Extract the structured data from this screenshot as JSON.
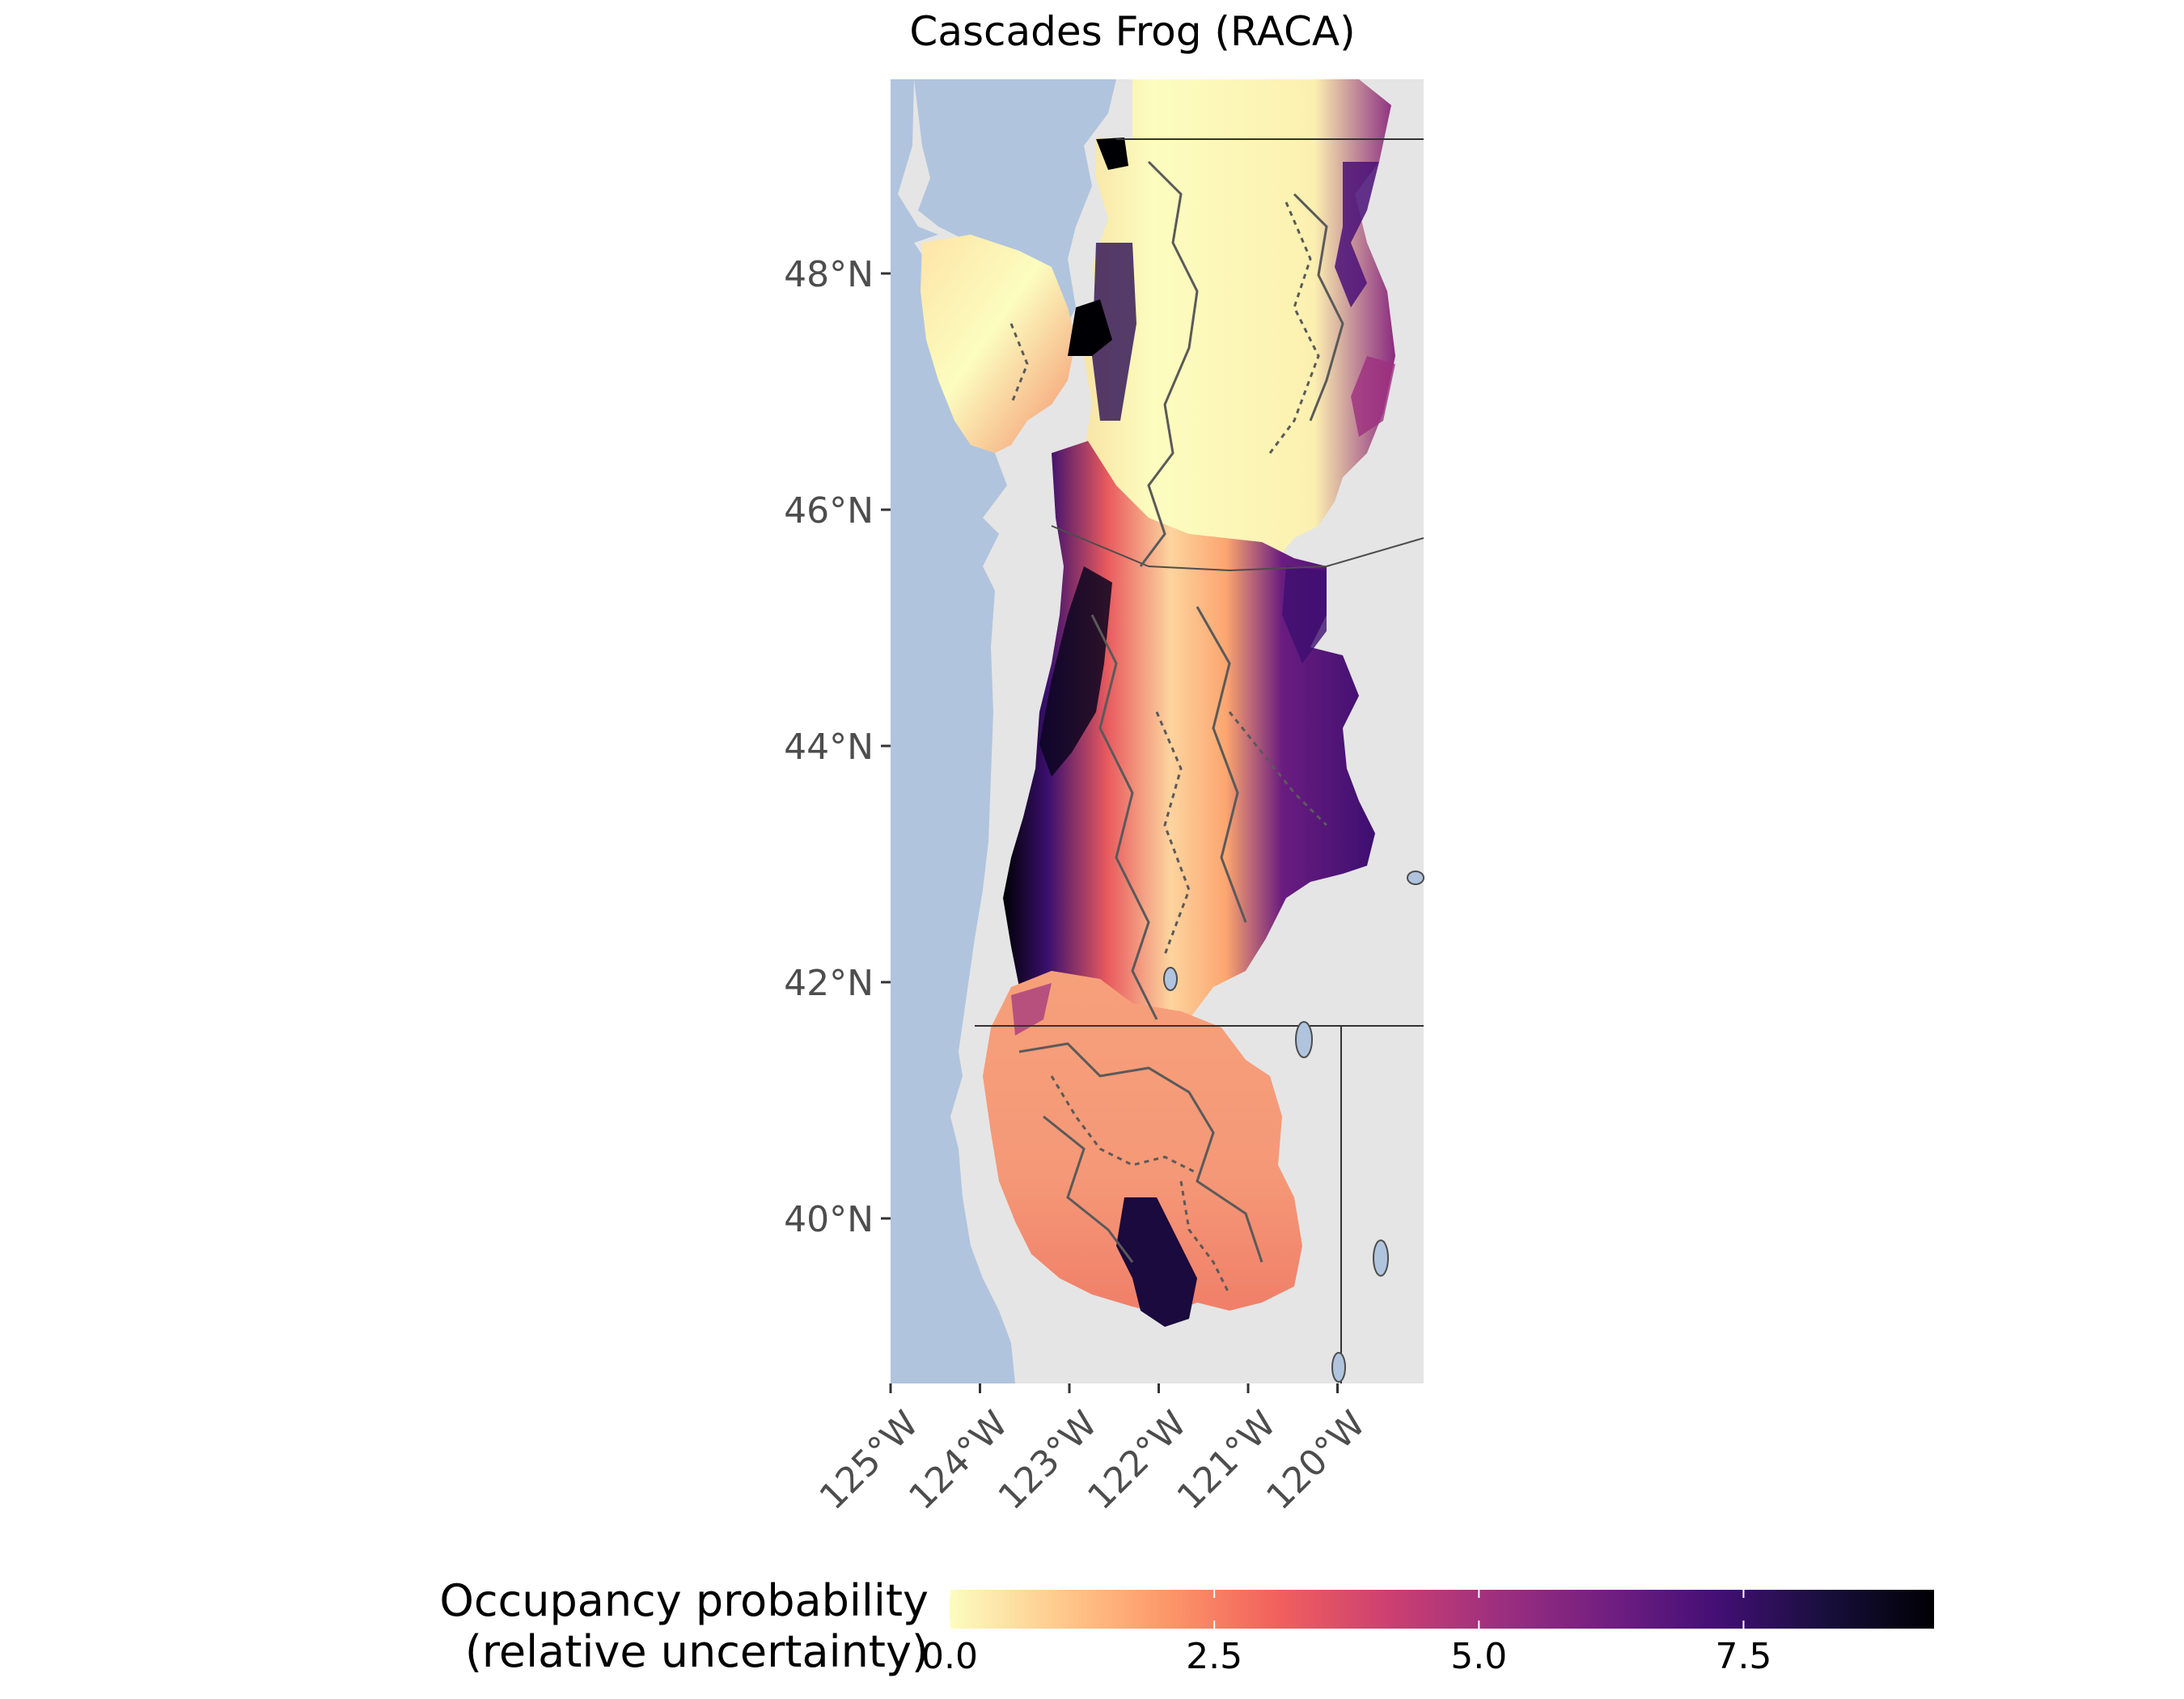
{
  "title": "Cascades Frog (RACA)",
  "map": {
    "lon_range": [
      -125,
      -119
    ],
    "lat_range": [
      39,
      49.5
    ],
    "lat_ticks": [
      {
        "value": 48,
        "label": "48°N"
      },
      {
        "value": 46,
        "label": "46°N"
      },
      {
        "value": 44,
        "label": "44°N"
      },
      {
        "value": 42,
        "label": "42°N"
      },
      {
        "value": 40,
        "label": "40°N"
      }
    ],
    "lon_ticks": [
      {
        "value": -125,
        "label": "125°W"
      },
      {
        "value": -124,
        "label": "124°W"
      },
      {
        "value": -123,
        "label": "123°W"
      },
      {
        "value": -122,
        "label": "122°W"
      },
      {
        "value": -121,
        "label": "121°W"
      },
      {
        "value": -120,
        "label": "120°W"
      }
    ],
    "colors": {
      "ocean": "#b0c4de",
      "land": "#e5e5e5",
      "border": "#4d4d4d"
    }
  },
  "legend": {
    "title_line1": "Occupancy probability",
    "title_line2": "(relative uncertainty)",
    "range": [
      0,
      9.3
    ],
    "ticks": [
      {
        "value": 0,
        "label": "0.0"
      },
      {
        "value": 2.5,
        "label": "2.5"
      },
      {
        "value": 5,
        "label": "5.0"
      },
      {
        "value": 7.5,
        "label": "7.5"
      }
    ],
    "palette": [
      "#fcfdbf",
      "#feca8d",
      "#fd9668",
      "#f1605d",
      "#cd4071",
      "#9e2f7f",
      "#721f81",
      "#440f76",
      "#180f3d",
      "#000004"
    ]
  }
}
